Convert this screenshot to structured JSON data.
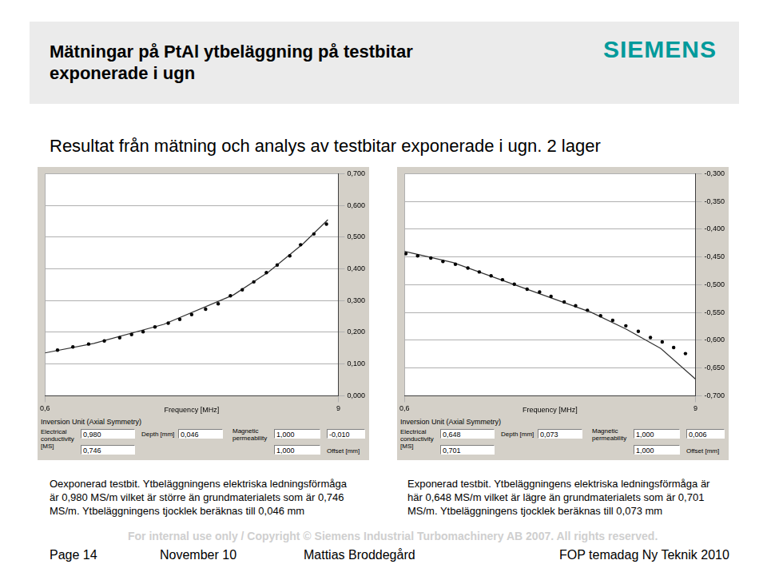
{
  "slide": {
    "title": [
      "Mätningar på PtAl ytbeläggning på testbitar",
      "exponerade i ugn"
    ],
    "logo": "SIEMENS",
    "subtitle": "Resultat från mätning och analys av testbitar exponerade i ugn. 2 lager"
  },
  "chart_data": [
    {
      "type": "scatter",
      "x_label": "Frequency [MHz]",
      "xlim": [
        0.6,
        9
      ],
      "xticks": [
        {
          "value": 0.6,
          "label": "0,6"
        },
        9
      ],
      "ylim": [
        0,
        0.7
      ],
      "yticks": [
        {
          "value": 0,
          "label": "0,000"
        },
        {
          "value": 0.1,
          "label": "0,100"
        },
        {
          "value": 0.2,
          "label": "0,200"
        },
        {
          "value": 0.3,
          "label": "0,300"
        },
        {
          "value": 0.4,
          "label": "0,400"
        },
        {
          "value": 0.5,
          "label": "0,500"
        },
        {
          "value": 0.6,
          "label": "0,600"
        },
        {
          "value": 0.7,
          "label": "0,700"
        }
      ],
      "grid": true,
      "series": [
        {
          "type": "scatter",
          "marker": "circle",
          "color": "#000000",
          "x": [
            0.96,
            1.4,
            1.85,
            2.3,
            2.74,
            3.08,
            3.41,
            3.75,
            4.13,
            4.46,
            4.8,
            5.2,
            5.56,
            5.91,
            6.25,
            6.58,
            6.94,
            7.25,
            7.61,
            7.92,
            8.3,
            8.66
          ],
          "values": [
            0.144,
            0.154,
            0.163,
            0.173,
            0.183,
            0.193,
            0.202,
            0.217,
            0.229,
            0.241,
            0.256,
            0.273,
            0.29,
            0.315,
            0.334,
            0.359,
            0.388,
            0.412,
            0.441,
            0.476,
            0.51,
            0.541
          ]
        },
        {
          "type": "line",
          "line_style": "solid",
          "color": "#333333",
          "x": [
            0.6,
            2,
            4,
            6,
            7,
            8,
            8.7
          ],
          "values": [
            0.135,
            0.165,
            0.225,
            0.318,
            0.39,
            0.48,
            0.555
          ]
        }
      ]
    },
    {
      "type": "scatter",
      "x_label": "Frequency [MHz]",
      "xlim": [
        0.6,
        9
      ],
      "xticks": [
        {
          "value": 0.6,
          "label": "0,6"
        },
        9
      ],
      "ylim": [
        -0.7,
        -0.3
      ],
      "yticks": [
        {
          "value": -0.7,
          "label": "-0,700"
        },
        {
          "value": -0.65,
          "label": "-0,650"
        },
        {
          "value": -0.6,
          "label": "-0,600"
        },
        {
          "value": -0.55,
          "label": "-0,550"
        },
        {
          "value": -0.5,
          "label": "-0,500"
        },
        {
          "value": -0.45,
          "label": "-0,450"
        },
        {
          "value": -0.4,
          "label": "-0,400"
        },
        {
          "value": -0.35,
          "label": "-0,350"
        },
        {
          "value": -0.3,
          "label": "-0,300"
        }
      ],
      "grid": true,
      "series": [
        {
          "type": "scatter",
          "marker": "circle",
          "color": "#000000",
          "x": [
            0.64,
            0.98,
            1.36,
            1.71,
            2.07,
            2.43,
            2.76,
            3.1,
            3.43,
            3.77,
            4.14,
            4.5,
            4.83,
            5.21,
            5.54,
            5.88,
            6.26,
            6.61,
            6.99,
            7.35,
            7.7,
            8.04,
            8.37,
            8.71
          ],
          "values": [
            -0.444,
            -0.448,
            -0.452,
            -0.458,
            -0.463,
            -0.47,
            -0.477,
            -0.484,
            -0.491,
            -0.499,
            -0.508,
            -0.513,
            -0.521,
            -0.531,
            -0.538,
            -0.546,
            -0.556,
            -0.564,
            -0.574,
            -0.584,
            -0.595,
            -0.603,
            -0.613,
            -0.624
          ]
        },
        {
          "type": "line",
          "line_style": "solid",
          "color": "#333333",
          "x": [
            0.6,
            2,
            4,
            6,
            7,
            8,
            9
          ],
          "values": [
            -0.44,
            -0.46,
            -0.505,
            -0.55,
            -0.58,
            -0.615,
            -0.67
          ]
        }
      ]
    }
  ],
  "panels": [
    {
      "title": "Inversion Unit (Axial Symmetry)",
      "conductivity_label": [
        "Electrical",
        "conductivity",
        "[MS]"
      ],
      "conductivity": [
        "0,980",
        "0,746"
      ],
      "depth_label": "Depth [mm]",
      "depth": "0,046",
      "permeability_label": [
        "Magnetic",
        "permeability"
      ],
      "permeability": [
        "1,000",
        "1,000"
      ],
      "offset": "-0,010",
      "offset_label": "Offset [mm]"
    },
    {
      "title": "Inversion Unit (Axial Symmetry)",
      "conductivity_label": [
        "Electrical",
        "conductivity",
        "[MS]"
      ],
      "conductivity": [
        "0,648",
        "0,701"
      ],
      "depth_label": "Depth [mm]",
      "depth": "0,073",
      "permeability_label": [
        "Magnetic",
        "permeability"
      ],
      "permeability": [
        "1,000",
        "1,000"
      ],
      "offset": "0,006",
      "offset_label": "Offset [mm]"
    }
  ],
  "captions": [
    [
      "Oexponerad testbit. Ytbeläggningens elektriska ledningsförmåga",
      "är 0,980 MS/m vilket är större än grundmaterialets som är 0,746",
      "MS/m. Ytbeläggningens tjocklek beräknas till 0,046 mm"
    ],
    [
      "Exponerad testbit. Ytbeläggningens elektriska ledningsförmåga är",
      "här 0,648 MS/m vilket är lägre än grundmaterialets som är 0,701",
      "MS/m. Ytbeläggningens tjocklek beräknas till 0,073 mm"
    ]
  ],
  "footer": {
    "note": "For internal use only / Copyright © Siemens Industrial Turbomachinery AB 2007. All rights reserved.",
    "page": "Page 14",
    "date": "November 10",
    "author": "Mattias Broddegård",
    "event": "FOP temadag Ny Teknik 2010"
  }
}
